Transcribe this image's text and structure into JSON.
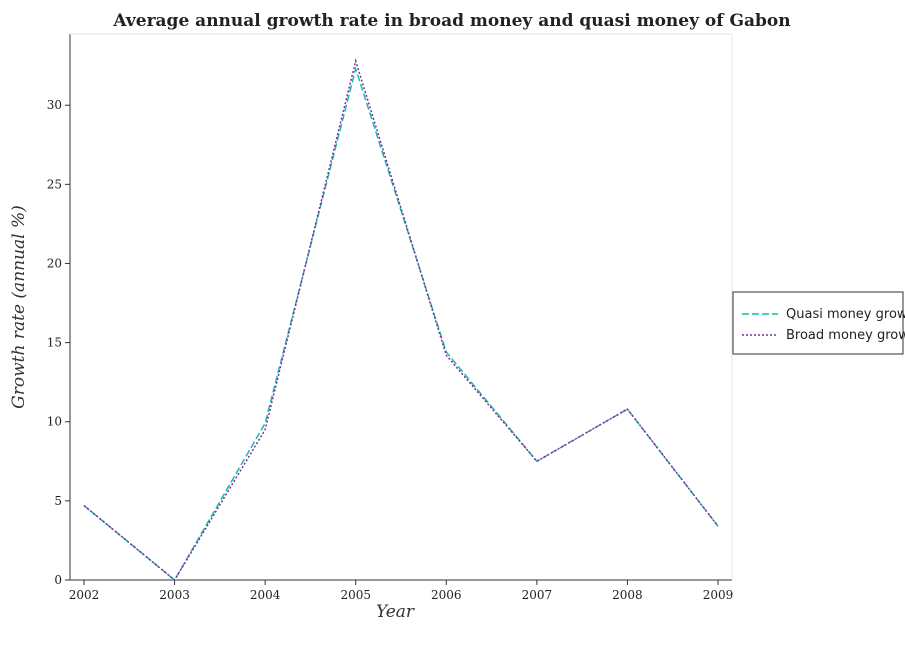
{
  "chart_data": {
    "type": "line",
    "title": "Average annual growth rate in broad money and quasi money of Gabon",
    "xlabel": "Year",
    "ylabel": "Growth rate (annual %)",
    "categories": [
      "2002",
      "2003",
      "2004",
      "2005",
      "2006",
      "2007",
      "2008",
      "2009"
    ],
    "ylim": [
      0,
      34.5
    ],
    "yticks": [
      0,
      5,
      10,
      15,
      20,
      25,
      30
    ],
    "series": [
      {
        "name": "Quasi money growth",
        "color": "#1fb8a8",
        "dash": "dashed",
        "values": [
          4.7,
          0,
          9.9,
          32.3,
          14.4,
          7.5,
          10.8,
          3.4
        ]
      },
      {
        "name": "Broad money growth",
        "color": "#7b2f9e",
        "dash": "dotted",
        "values": [
          4.7,
          0,
          9.5,
          32.8,
          14.2,
          7.5,
          10.8,
          3.4
        ]
      }
    ],
    "legend_position": "right",
    "grid": false
  }
}
